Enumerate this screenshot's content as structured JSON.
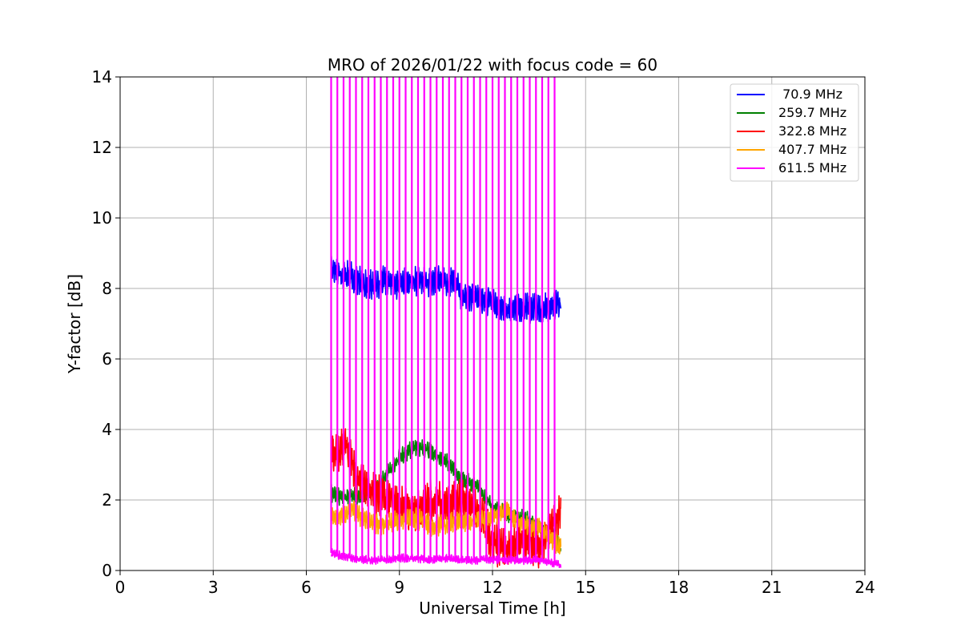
{
  "chart_data": {
    "type": "line",
    "title": "MRO of 2026/01/22 with focus code = 60",
    "xlabel": "Universal Time [h]",
    "ylabel": "Y-factor [dB]",
    "xlim": [
      0,
      24
    ],
    "ylim": [
      0,
      14
    ],
    "xticks": [
      0,
      3,
      6,
      9,
      12,
      15,
      18,
      21,
      24
    ],
    "yticks": [
      0,
      2,
      4,
      6,
      8,
      10,
      12,
      14
    ],
    "grid": true,
    "legend_position": "top-right",
    "series": [
      {
        "name": " 70.9 MHz",
        "color": "#0000ff",
        "x": [
          6.8,
          7.0,
          7.5,
          8.0,
          8.5,
          9.0,
          9.5,
          10.0,
          10.5,
          10.8,
          11.0,
          11.5,
          12.0,
          12.5,
          13.0,
          13.5,
          14.0,
          14.2
        ],
        "values": [
          8.6,
          8.5,
          8.3,
          8.1,
          8.2,
          8.1,
          8.2,
          8.2,
          8.2,
          8.2,
          7.8,
          7.7,
          7.6,
          7.4,
          7.5,
          7.4,
          7.5,
          7.6
        ],
        "band": 0.35
      },
      {
        "name": "259.7 MHz",
        "color": "#008000",
        "x": [
          6.8,
          7.0,
          7.5,
          8.0,
          8.5,
          9.0,
          9.5,
          10.0,
          10.5,
          11.0,
          11.5,
          12.0,
          12.5,
          13.0,
          13.5,
          14.0,
          14.2
        ],
        "values": [
          2.2,
          2.1,
          2.1,
          2.2,
          2.6,
          3.2,
          3.5,
          3.4,
          3.1,
          2.6,
          2.4,
          1.8,
          1.6,
          1.5,
          1.2,
          1.0,
          0.7
        ],
        "band": 0.2
      },
      {
        "name": "322.8 MHz",
        "color": "#ff0000",
        "x": [
          6.8,
          7.0,
          7.3,
          7.6,
          8.0,
          8.5,
          9.0,
          9.5,
          10.0,
          10.5,
          11.0,
          11.5,
          12.0,
          12.5,
          13.0,
          13.5,
          14.0,
          14.2
        ],
        "values": [
          3.4,
          3.3,
          3.6,
          2.6,
          2.4,
          2.0,
          1.9,
          1.6,
          2.0,
          1.9,
          2.1,
          1.8,
          0.8,
          0.6,
          0.9,
          0.7,
          1.3,
          1.6
        ],
        "band": 0.5
      },
      {
        "name": "407.7 MHz",
        "color": "#ffa500",
        "x": [
          6.8,
          7.0,
          7.5,
          8.0,
          8.5,
          9.0,
          9.5,
          10.0,
          10.5,
          11.0,
          11.5,
          12.0,
          12.5,
          13.0,
          13.5,
          14.0,
          14.2
        ],
        "values": [
          1.5,
          1.5,
          1.7,
          1.4,
          1.3,
          1.4,
          1.5,
          1.3,
          1.3,
          1.4,
          1.4,
          1.5,
          1.7,
          1.3,
          1.2,
          0.8,
          0.6
        ],
        "band": 0.25
      },
      {
        "name": "611.5 MHz",
        "color": "#ff00ff",
        "x": [
          6.8,
          7.0,
          7.5,
          8.0,
          8.5,
          9.0,
          9.5,
          10.0,
          10.5,
          11.0,
          11.5,
          12.0,
          12.5,
          13.0,
          13.5,
          14.0,
          14.2
        ],
        "values": [
          0.5,
          0.45,
          0.35,
          0.3,
          0.3,
          0.35,
          0.35,
          0.3,
          0.35,
          0.3,
          0.3,
          0.3,
          0.3,
          0.3,
          0.3,
          0.2,
          0.15
        ],
        "band": 0.1,
        "spikes": [
          6.8,
          7.0,
          7.2,
          7.4,
          7.6,
          7.8,
          8.0,
          8.2,
          8.4,
          8.6,
          8.8,
          9.0,
          9.2,
          9.4,
          9.6,
          9.8,
          10.0,
          10.2,
          10.4,
          10.6,
          10.8,
          11.0,
          11.2,
          11.4,
          11.6,
          11.8,
          12.0,
          12.2,
          12.4,
          12.6,
          12.8,
          13.0,
          13.2,
          13.4,
          13.6,
          13.8,
          14.0
        ]
      }
    ]
  }
}
